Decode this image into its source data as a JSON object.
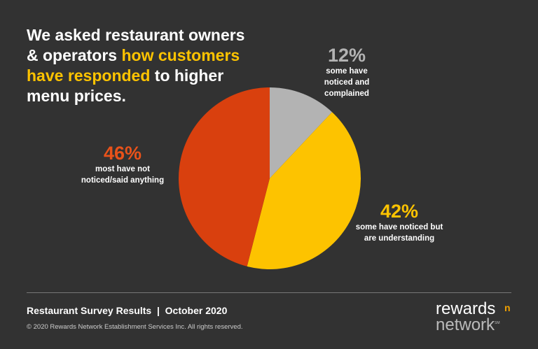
{
  "title": {
    "part1": "We asked restaurant owners & operators ",
    "highlight": "how customers have responded",
    "part2": " to higher menu prices."
  },
  "chart_data": {
    "type": "pie",
    "slices": [
      {
        "label": "some have noticed and complained",
        "value": 12,
        "pct_label": "12%",
        "color": "#b3b3b3"
      },
      {
        "label": "some have noticed but are understanding",
        "value": 42,
        "pct_label": "42%",
        "color": "#fdc300"
      },
      {
        "label": "most have not noticed/said anything",
        "value": 46,
        "pct_label": "46%",
        "color": "#d9400e"
      }
    ]
  },
  "footer": {
    "title": "Restaurant Survey Results  |  October 2020",
    "copyright": "© 2020 Rewards Network Establishment Services Inc. All rights reserved."
  },
  "logo": {
    "line1": "rewards",
    "line2": "network",
    "mark": "n",
    "sm": "SM"
  }
}
